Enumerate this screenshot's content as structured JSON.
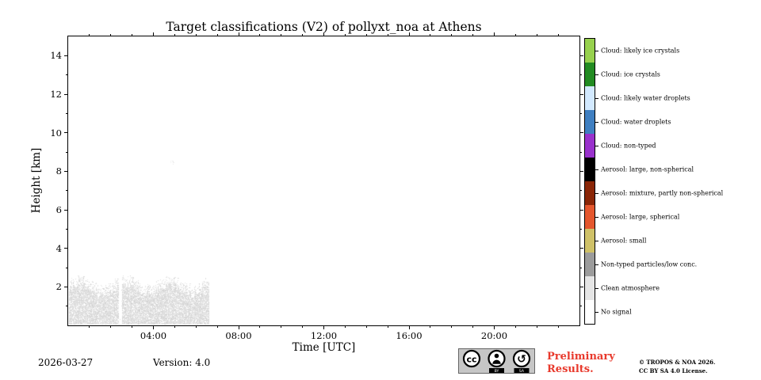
{
  "chart_data": {
    "type": "heatmap",
    "title": "Target classifications (V2) of pollyxt_noa at Athens",
    "xlabel": "Time [UTC]",
    "ylabel": "Height [km]",
    "legend_position": "right colorbar",
    "grid": false,
    "x_axis": {
      "range_hours": [
        0,
        24
      ],
      "major_ticks": [
        {
          "hour": 4,
          "label": "04:00"
        },
        {
          "hour": 8,
          "label": "08:00"
        },
        {
          "hour": 12,
          "label": "12:00"
        },
        {
          "hour": 16,
          "label": "16:00"
        },
        {
          "hour": 20,
          "label": "20:00"
        }
      ],
      "minor_step_hours": 1
    },
    "y_axis": {
      "range_km": [
        0,
        15
      ],
      "major_ticks": [
        {
          "km": 2,
          "label": "2"
        },
        {
          "km": 4,
          "label": "4"
        },
        {
          "km": 6,
          "label": "6"
        },
        {
          "km": 8,
          "label": "8"
        },
        {
          "km": 10,
          "label": "10"
        },
        {
          "km": 12,
          "label": "12"
        },
        {
          "km": 14,
          "label": "14"
        }
      ],
      "minor_step_km": 1
    },
    "classes": [
      {
        "label": "Cloud: likely ice crystals",
        "color": "#97d14e"
      },
      {
        "label": "Cloud: ice crystals",
        "color": "#228b22"
      },
      {
        "label": "Cloud: likely water droplets",
        "color": "#d2e9ff"
      },
      {
        "label": "Cloud: water droplets",
        "color": "#3f7fc1"
      },
      {
        "label": "Cloud: non-typed",
        "color": "#9932cc"
      },
      {
        "label": "Aerosol: large, non-spherical",
        "color": "#000000"
      },
      {
        "label": "Aerosol: mixture, partly non-spherical",
        "color": "#8a2607"
      },
      {
        "label": "Aerosol: large, spherical",
        "color": "#e4572e"
      },
      {
        "label": "Aerosol: small",
        "color": "#cfc168"
      },
      {
        "label": "Non-typed particles/low conc.",
        "color": "#9c9c9c"
      },
      {
        "label": "Clean atmosphere",
        "color": "#e5e5e5"
      },
      {
        "label": "No signal",
        "color": "#ffffff"
      }
    ],
    "regions": [
      {
        "class": "Clean atmosphere",
        "time_start_h": 0.05,
        "time_end_h": 6.6,
        "height_base_km": 0.08,
        "height_top_km_min": 1.8,
        "height_top_km_max": 2.55,
        "gaps_h": [
          [
            2.37,
            2.52
          ]
        ],
        "note": "speckled low-level clean-atmosphere returns in the first hours of the day"
      },
      {
        "class": "No signal",
        "note": "remainder of the plot area is white (no signal)"
      }
    ],
    "faint_specks": {
      "time_h": [
        4.6,
        4.95
      ],
      "height_km": [
        8.3,
        8.65
      ],
      "count": 8
    }
  },
  "footer": {
    "date": "2026-03-27",
    "version": "Version: 4.0",
    "preliminary_line1": "Preliminary",
    "preliminary_line2": "Results.",
    "preliminary_color": "#e8392c",
    "copyright_line1": "© TROPOS & NOA 2026.",
    "copyright_line2": "CC BY SA 4.0 License."
  },
  "cc_badge": {
    "cc": "cc",
    "by": "BY",
    "sa": "SA"
  }
}
